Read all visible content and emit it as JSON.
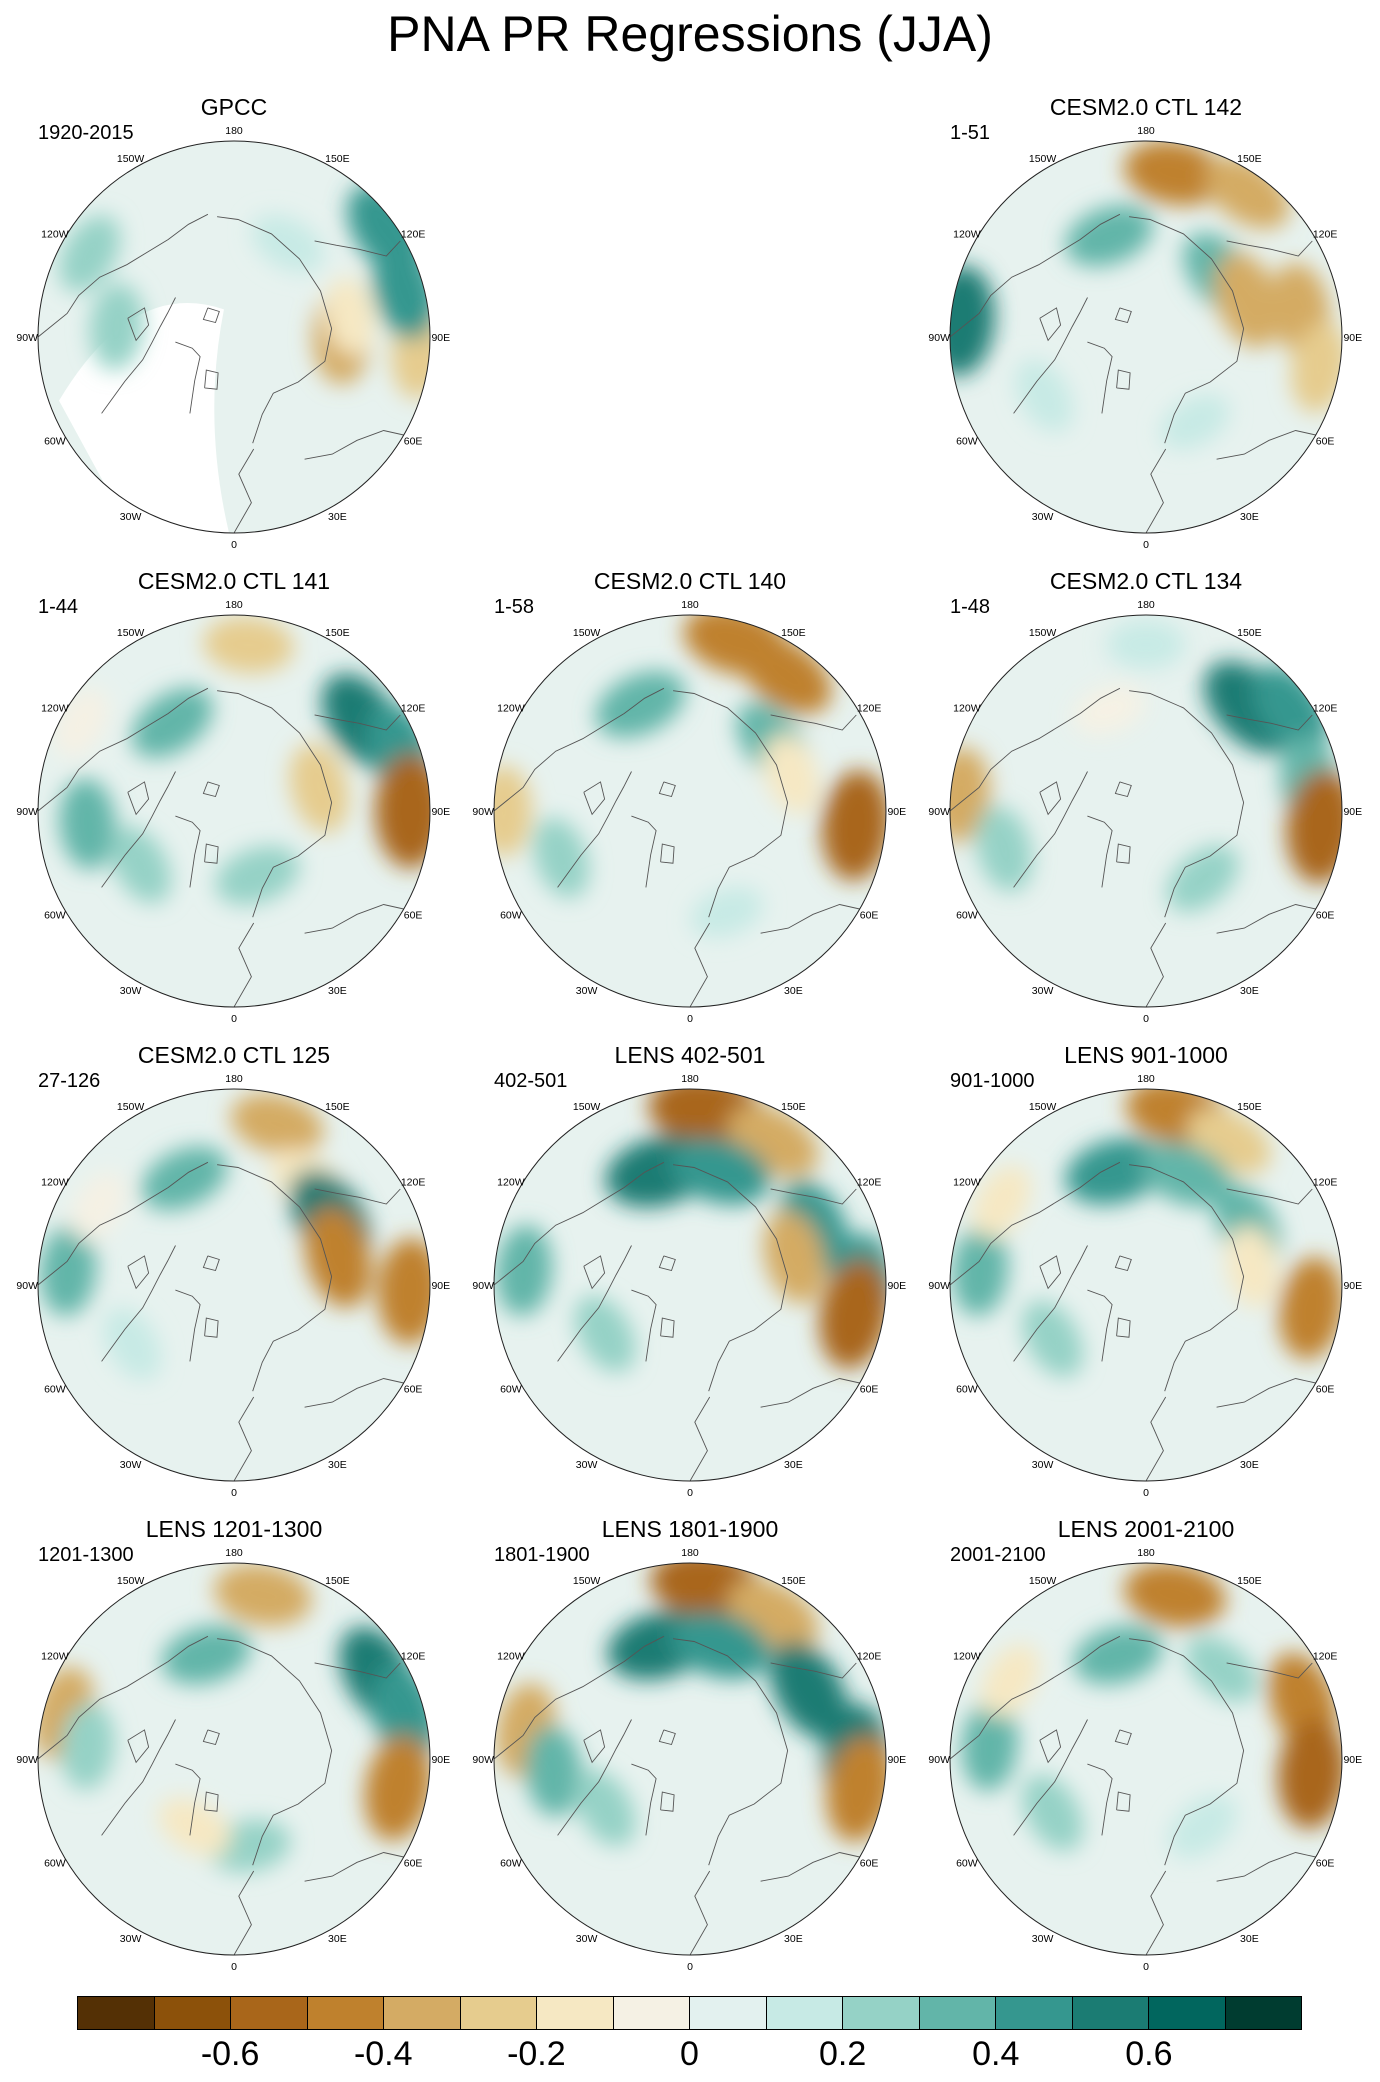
{
  "title": "PNA PR Regressions (JJA)",
  "longitude_labels": [
    "180",
    "150E",
    "120E",
    "90E",
    "60E",
    "30E",
    "0",
    "30W",
    "60W",
    "90W",
    "120W",
    "150W"
  ],
  "colorbar": {
    "colors": [
      "#543005",
      "#8c510a",
      "#a9661a",
      "#bf812d",
      "#d4ab64",
      "#e6cc8e",
      "#f6e8c3",
      "#f5f1e4",
      "#e3f1ef",
      "#c7eae5",
      "#95d2c6",
      "#62b5a9",
      "#35978f",
      "#1b7c73",
      "#01665e",
      "#003c30"
    ],
    "tick_labels": [
      "-0.6",
      "-0.4",
      "-0.2",
      "0",
      "0.2",
      "0.4",
      "0.6"
    ]
  },
  "panels": [
    {
      "id": "gpcc",
      "title": "GPCC",
      "period": "1920-2015",
      "missing_data": true,
      "anomalies": [
        {
          "lon": 90,
          "r": 0.55,
          "value": -0.35
        },
        {
          "lon": 85,
          "r": 0.95,
          "value": -0.3
        },
        {
          "lon": 105,
          "r": 0.9,
          "value": 0.4
        },
        {
          "lon": 125,
          "r": 0.95,
          "value": 0.45
        },
        {
          "lon": 150,
          "r": 0.55,
          "value": 0.15
        },
        {
          "lon": 265,
          "r": 0.6,
          "value": 0.25
        },
        {
          "lon": 240,
          "r": 0.85,
          "value": 0.2
        },
        {
          "lon": 100,
          "r": 0.6,
          "value": -0.15
        }
      ]
    },
    {
      "id": "ctl142",
      "title": "CESM2.0 CTL 142",
      "period": "1-51",
      "anomalies": [
        {
          "lon": 170,
          "r": 0.85,
          "value": -0.45
        },
        {
          "lon": 145,
          "r": 0.9,
          "value": -0.35
        },
        {
          "lon": 200,
          "r": 0.55,
          "value": 0.3
        },
        {
          "lon": 130,
          "r": 0.5,
          "value": 0.35
        },
        {
          "lon": 110,
          "r": 0.55,
          "value": -0.4
        },
        {
          "lon": 100,
          "r": 0.8,
          "value": -0.35
        },
        {
          "lon": 265,
          "r": 0.95,
          "value": 0.55
        },
        {
          "lon": 80,
          "r": 0.9,
          "value": -0.3
        },
        {
          "lon": 300,
          "r": 0.6,
          "value": 0.15
        },
        {
          "lon": 30,
          "r": 0.5,
          "value": 0.1
        }
      ]
    },
    {
      "id": "ctl141",
      "title": "CESM2.0 CTL 141",
      "period": "1-44",
      "anomalies": [
        {
          "lon": 175,
          "r": 0.85,
          "value": -0.3
        },
        {
          "lon": 215,
          "r": 0.55,
          "value": 0.3
        },
        {
          "lon": 125,
          "r": 0.8,
          "value": 0.5
        },
        {
          "lon": 110,
          "r": 0.9,
          "value": 0.4
        },
        {
          "lon": 90,
          "r": 0.9,
          "value": -0.6
        },
        {
          "lon": 105,
          "r": 0.45,
          "value": -0.3
        },
        {
          "lon": 275,
          "r": 0.75,
          "value": 0.3
        },
        {
          "lon": 20,
          "r": 0.35,
          "value": 0.25
        },
        {
          "lon": 300,
          "r": 0.55,
          "value": 0.2
        },
        {
          "lon": 240,
          "r": 0.9,
          "value": -0.1
        }
      ]
    },
    {
      "id": "ctl140",
      "title": "CESM2.0 CTL 140",
      "period": "1-58",
      "anomalies": [
        {
          "lon": 165,
          "r": 0.9,
          "value": -0.5
        },
        {
          "lon": 145,
          "r": 0.85,
          "value": -0.45
        },
        {
          "lon": 205,
          "r": 0.6,
          "value": 0.35
        },
        {
          "lon": 130,
          "r": 0.55,
          "value": 0.3
        },
        {
          "lon": 85,
          "r": 0.85,
          "value": -0.55
        },
        {
          "lon": 110,
          "r": 0.55,
          "value": -0.2
        },
        {
          "lon": 270,
          "r": 0.95,
          "value": -0.3
        },
        {
          "lon": 290,
          "r": 0.7,
          "value": 0.2
        },
        {
          "lon": 20,
          "r": 0.55,
          "value": 0.1
        }
      ]
    },
    {
      "id": "ctl134",
      "title": "CESM2.0 CTL 134",
      "period": "1-48",
      "anomalies": [
        {
          "lon": 135,
          "r": 0.75,
          "value": 0.55
        },
        {
          "lon": 125,
          "r": 0.9,
          "value": 0.4
        },
        {
          "lon": 100,
          "r": 0.85,
          "value": 0.35
        },
        {
          "lon": 85,
          "r": 0.9,
          "value": -0.6
        },
        {
          "lon": 265,
          "r": 0.95,
          "value": -0.35
        },
        {
          "lon": 285,
          "r": 0.75,
          "value": 0.25
        },
        {
          "lon": 180,
          "r": 0.85,
          "value": 0.15
        },
        {
          "lon": 200,
          "r": 0.55,
          "value": -0.1
        },
        {
          "lon": 40,
          "r": 0.45,
          "value": 0.2
        }
      ]
    },
    {
      "id": "ctl125",
      "title": "CESM2.0 CTL 125",
      "period": "27-126",
      "anomalies": [
        {
          "lon": 165,
          "r": 0.85,
          "value": -0.35
        },
        {
          "lon": 145,
          "r": 0.65,
          "value": -0.2
        },
        {
          "lon": 205,
          "r": 0.6,
          "value": 0.3
        },
        {
          "lon": 125,
          "r": 0.6,
          "value": 0.5
        },
        {
          "lon": 105,
          "r": 0.55,
          "value": -0.45
        },
        {
          "lon": 88,
          "r": 0.9,
          "value": -0.5
        },
        {
          "lon": 265,
          "r": 0.85,
          "value": 0.3
        },
        {
          "lon": 300,
          "r": 0.6,
          "value": 0.15
        },
        {
          "lon": 240,
          "r": 0.8,
          "value": -0.1
        }
      ]
    },
    {
      "id": "lens402",
      "title": "LENS 402-501",
      "period": "402-501",
      "anomalies": [
        {
          "lon": 175,
          "r": 0.9,
          "value": -0.6
        },
        {
          "lon": 150,
          "r": 0.85,
          "value": -0.4
        },
        {
          "lon": 195,
          "r": 0.6,
          "value": 0.55
        },
        {
          "lon": 165,
          "r": 0.6,
          "value": 0.45
        },
        {
          "lon": 115,
          "r": 0.7,
          "value": 0.4
        },
        {
          "lon": 105,
          "r": 0.55,
          "value": -0.35
        },
        {
          "lon": 90,
          "r": 0.88,
          "value": 0.45
        },
        {
          "lon": 80,
          "r": 0.85,
          "value": -0.55
        },
        {
          "lon": 265,
          "r": 0.85,
          "value": 0.3
        },
        {
          "lon": 300,
          "r": 0.5,
          "value": 0.2
        }
      ]
    },
    {
      "id": "lens901",
      "title": "LENS 901-1000",
      "period": "901-1000",
      "anomalies": [
        {
          "lon": 170,
          "r": 0.9,
          "value": -0.45
        },
        {
          "lon": 150,
          "r": 0.85,
          "value": -0.3
        },
        {
          "lon": 195,
          "r": 0.6,
          "value": 0.45
        },
        {
          "lon": 160,
          "r": 0.6,
          "value": 0.35
        },
        {
          "lon": 120,
          "r": 0.6,
          "value": 0.3
        },
        {
          "lon": 100,
          "r": 0.55,
          "value": -0.2
        },
        {
          "lon": 82,
          "r": 0.85,
          "value": -0.45
        },
        {
          "lon": 265,
          "r": 0.85,
          "value": 0.3
        },
        {
          "lon": 300,
          "r": 0.55,
          "value": 0.2
        },
        {
          "lon": 240,
          "r": 0.85,
          "value": -0.15
        }
      ]
    },
    {
      "id": "lens1201",
      "title": "LENS 1201-1300",
      "period": "1201-1300",
      "anomalies": [
        {
          "lon": 170,
          "r": 0.85,
          "value": -0.4
        },
        {
          "lon": 195,
          "r": 0.55,
          "value": 0.3
        },
        {
          "lon": 120,
          "r": 0.85,
          "value": 0.5
        },
        {
          "lon": 105,
          "r": 0.9,
          "value": 0.45
        },
        {
          "lon": 80,
          "r": 0.85,
          "value": -0.5
        },
        {
          "lon": 255,
          "r": 0.9,
          "value": -0.35
        },
        {
          "lon": 265,
          "r": 0.75,
          "value": 0.25
        },
        {
          "lon": 10,
          "r": 0.45,
          "value": 0.2
        },
        {
          "lon": 330,
          "r": 0.4,
          "value": -0.15
        }
      ]
    },
    {
      "id": "lens1801",
      "title": "LENS 1801-1900",
      "period": "1801-1900",
      "anomalies": [
        {
          "lon": 175,
          "r": 0.9,
          "value": -0.55
        },
        {
          "lon": 150,
          "r": 0.85,
          "value": -0.4
        },
        {
          "lon": 195,
          "r": 0.6,
          "value": 0.5
        },
        {
          "lon": 165,
          "r": 0.6,
          "value": 0.45
        },
        {
          "lon": 120,
          "r": 0.7,
          "value": 0.5
        },
        {
          "lon": 90,
          "r": 0.85,
          "value": 0.55
        },
        {
          "lon": 80,
          "r": 0.88,
          "value": -0.5
        },
        {
          "lon": 260,
          "r": 0.85,
          "value": -0.35
        },
        {
          "lon": 275,
          "r": 0.7,
          "value": 0.3
        },
        {
          "lon": 300,
          "r": 0.5,
          "value": 0.2
        }
      ]
    },
    {
      "id": "lens2001",
      "title": "LENS 2001-2100",
      "period": "2001-2100",
      "anomalies": [
        {
          "lon": 170,
          "r": 0.85,
          "value": -0.45
        },
        {
          "lon": 195,
          "r": 0.55,
          "value": 0.3
        },
        {
          "lon": 140,
          "r": 0.6,
          "value": 0.2
        },
        {
          "lon": 110,
          "r": 0.85,
          "value": -0.45
        },
        {
          "lon": 85,
          "r": 0.85,
          "value": -0.55
        },
        {
          "lon": 265,
          "r": 0.8,
          "value": 0.3
        },
        {
          "lon": 300,
          "r": 0.55,
          "value": 0.2
        },
        {
          "lon": 40,
          "r": 0.45,
          "value": 0.15
        },
        {
          "lon": 240,
          "r": 0.8,
          "value": -0.15
        }
      ]
    }
  ]
}
